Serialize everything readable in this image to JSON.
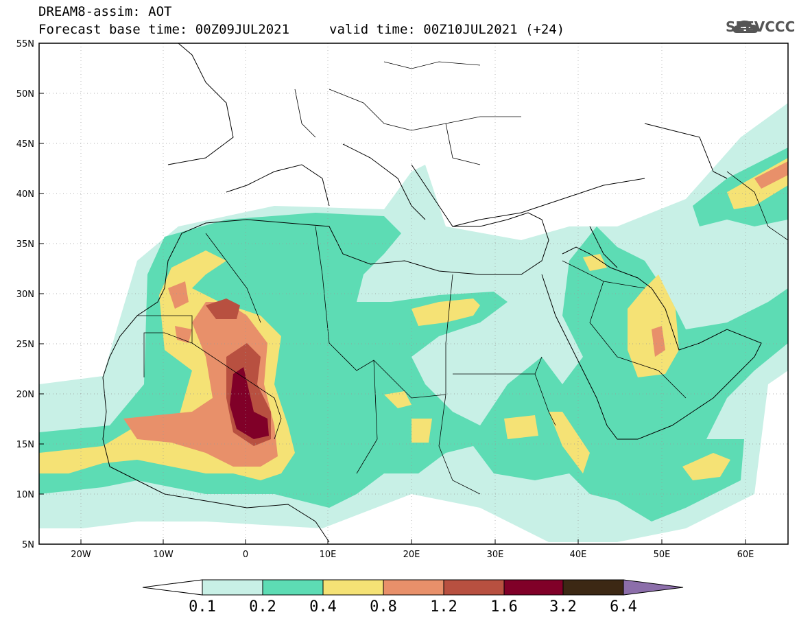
{
  "header": {
    "title": "DREAM8-assim: AOT",
    "base_time": "Forecast base time: 00Z09JUL2021",
    "valid_time": "valid time: 00Z10JUL2021 (+24)",
    "logo_text": "SEEVCCC"
  },
  "map": {
    "lat_labels": [
      "55N",
      "50N",
      "45N",
      "40N",
      "35N",
      "30N",
      "25N",
      "20N",
      "15N",
      "10N",
      "5N"
    ],
    "lon_labels": [
      "20W",
      "10W",
      "0",
      "10E",
      "20E",
      "30E",
      "40E",
      "50E",
      "60E"
    ],
    "lon_range": [
      -25,
      65
    ],
    "lat_range": [
      5,
      55
    ],
    "grid": "dotted",
    "field": "Aerosol Optical Thickness"
  },
  "colorbar": {
    "labels": [
      "0.1",
      "0.2",
      "0.4",
      "0.8",
      "1.2",
      "1.6",
      "3.2",
      "6.4"
    ],
    "colors": [
      "#ffffff",
      "#c8f0e6",
      "#5ddcb4",
      "#f5e275",
      "#e8906a",
      "#b85040",
      "#800028",
      "#3c2814",
      "#8c6eaa"
    ]
  }
}
